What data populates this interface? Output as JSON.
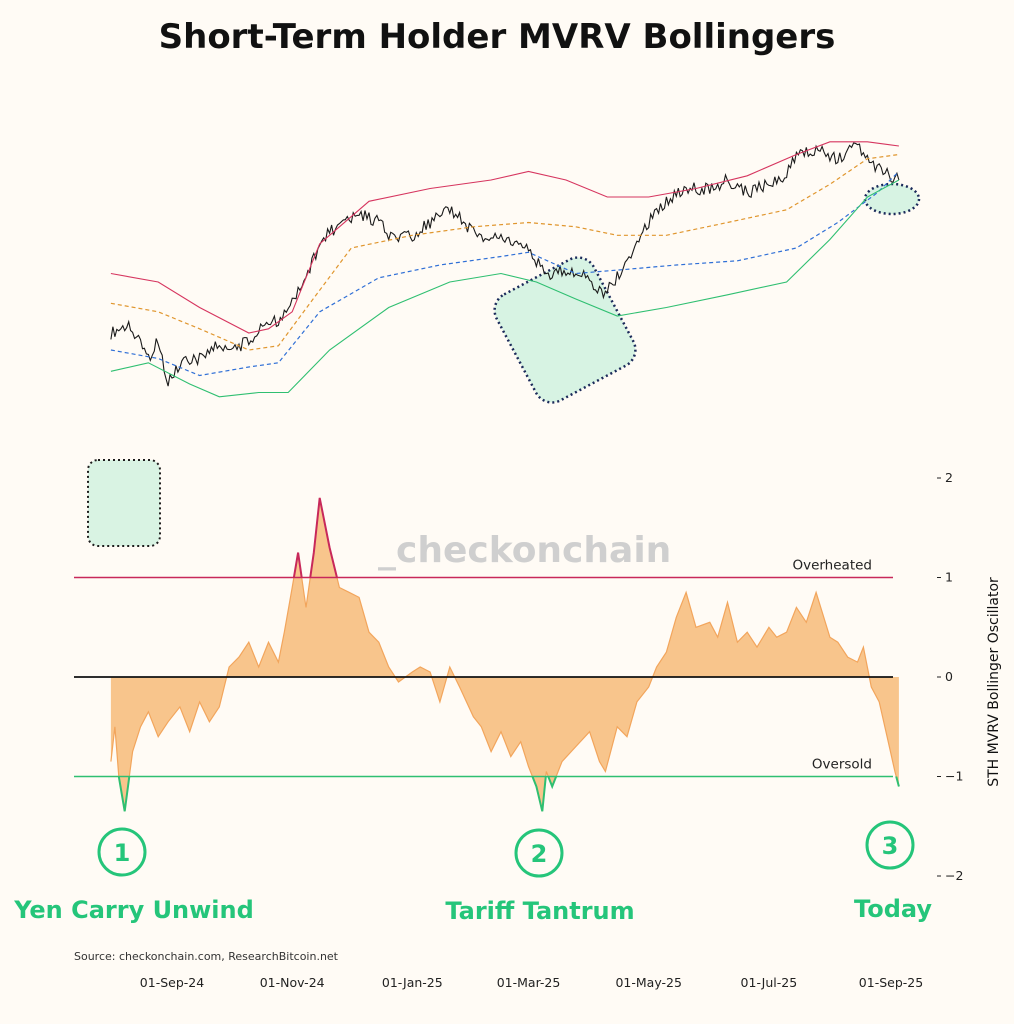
{
  "title": "Short-Term Holder MVRV Bollingers",
  "watermark": "_checkonchain",
  "source": "Source: checkonchain.com, ResearchBitcoin.net",
  "colors": {
    "background": "#fffbf5",
    "price": "#1a1a1a",
    "upper_band": "#d6355f",
    "mid_band": "#e0962e",
    "lower_mid_band": "#2f6fd6",
    "lower_band": "#2fbf71",
    "oscillator_fill": "#f8c58c",
    "oscillator_line": "#f2a55c",
    "overheated_line": "#c8285a",
    "oversold_line": "#2fbf71",
    "zero_line": "#111111",
    "accent_green": "#25c57a",
    "highlight_fill": "#d7f3e3"
  },
  "chart_data": [
    {
      "type": "line",
      "title": "Short-Term Holder MVRV Bollingers",
      "x_axis": {
        "tick_labels": [
          "01-Sep-24",
          "01-Nov-24",
          "01-Jan-25",
          "01-Mar-25",
          "01-May-25",
          "01-Jul-25",
          "01-Sep-25"
        ],
        "range": [
          "2024-08-01",
          "2025-09-10"
        ]
      },
      "y_axis": {
        "scale": "hidden"
      },
      "grid": false,
      "series": [
        {
          "name": "price",
          "x": [
            "2024-08-01",
            "2024-08-10",
            "2024-08-20",
            "2024-08-24",
            "2024-08-30",
            "2024-09-07",
            "2024-09-15",
            "2024-09-22",
            "2024-10-01",
            "2024-10-10",
            "2024-10-18",
            "2024-10-26",
            "2024-11-01",
            "2024-11-07",
            "2024-11-12",
            "2024-11-20",
            "2024-11-29",
            "2024-12-06",
            "2024-12-15",
            "2024-12-22",
            "2025-01-01",
            "2025-01-10",
            "2025-01-20",
            "2025-01-25",
            "2025-02-05",
            "2025-02-15",
            "2025-02-25",
            "2025-03-05",
            "2025-03-11",
            "2025-03-20",
            "2025-03-30",
            "2025-04-08",
            "2025-04-15",
            "2025-04-22",
            "2025-05-01",
            "2025-05-10",
            "2025-05-20",
            "2025-06-01",
            "2025-06-10",
            "2025-06-20",
            "2025-07-01",
            "2025-07-10",
            "2025-07-15",
            "2025-07-25",
            "2025-08-05",
            "2025-08-14",
            "2025-08-20",
            "2025-08-28",
            "2025-09-05"
          ],
          "y": [
            0.44,
            0.46,
            0.38,
            0.42,
            0.33,
            0.37,
            0.38,
            0.41,
            0.4,
            0.42,
            0.46,
            0.47,
            0.51,
            0.56,
            0.62,
            0.68,
            0.7,
            0.72,
            0.7,
            0.66,
            0.67,
            0.7,
            0.73,
            0.71,
            0.66,
            0.67,
            0.65,
            0.61,
            0.58,
            0.59,
            0.57,
            0.53,
            0.57,
            0.63,
            0.7,
            0.75,
            0.78,
            0.78,
            0.8,
            0.77,
            0.79,
            0.81,
            0.86,
            0.87,
            0.85,
            0.88,
            0.85,
            0.82,
            0.8
          ]
        },
        {
          "name": "upper band",
          "x": [
            "2024-08-01",
            "2024-08-25",
            "2024-09-15",
            "2024-10-10",
            "2024-10-20",
            "2024-11-01",
            "2024-11-15",
            "2024-12-10",
            "2025-01-10",
            "2025-02-10",
            "2025-03-01",
            "2025-03-20",
            "2025-04-10",
            "2025-05-01",
            "2025-05-25",
            "2025-06-20",
            "2025-07-15",
            "2025-08-01",
            "2025-08-20",
            "2025-09-05"
          ],
          "y": [
            0.58,
            0.56,
            0.5,
            0.44,
            0.45,
            0.49,
            0.65,
            0.75,
            0.78,
            0.8,
            0.82,
            0.8,
            0.76,
            0.76,
            0.78,
            0.81,
            0.86,
            0.89,
            0.89,
            0.88
          ]
        },
        {
          "name": "middle band",
          "x": [
            "2024-08-01",
            "2024-08-25",
            "2024-09-15",
            "2024-10-10",
            "2024-10-25",
            "2024-11-10",
            "2024-12-01",
            "2025-01-01",
            "2025-02-01",
            "2025-03-01",
            "2025-03-25",
            "2025-04-15",
            "2025-05-10",
            "2025-06-10",
            "2025-07-10",
            "2025-08-01",
            "2025-08-20",
            "2025-09-05"
          ],
          "y": [
            0.51,
            0.49,
            0.45,
            0.4,
            0.41,
            0.51,
            0.64,
            0.67,
            0.69,
            0.7,
            0.69,
            0.67,
            0.67,
            0.7,
            0.73,
            0.79,
            0.85,
            0.86
          ]
        },
        {
          "name": "lower-middle band",
          "x": [
            "2024-08-01",
            "2024-08-25",
            "2024-09-15",
            "2024-10-10",
            "2024-10-25",
            "2024-11-15",
            "2024-12-15",
            "2025-01-15",
            "2025-02-15",
            "2025-03-01",
            "2025-03-25",
            "2025-04-20",
            "2025-05-15",
            "2025-06-15",
            "2025-07-15",
            "2025-08-05",
            "2025-08-25",
            "2025-09-05"
          ],
          "y": [
            0.4,
            0.38,
            0.34,
            0.36,
            0.37,
            0.49,
            0.57,
            0.6,
            0.62,
            0.63,
            0.58,
            0.59,
            0.6,
            0.61,
            0.64,
            0.7,
            0.77,
            0.82
          ]
        },
        {
          "name": "lower band",
          "x": [
            "2024-08-01",
            "2024-08-20",
            "2024-09-10",
            "2024-09-25",
            "2024-10-15",
            "2024-10-30",
            "2024-11-20",
            "2024-12-20",
            "2025-01-20",
            "2025-02-15",
            "2025-03-05",
            "2025-03-25",
            "2025-04-15",
            "2025-05-10",
            "2025-06-10",
            "2025-07-10",
            "2025-08-01",
            "2025-08-20",
            "2025-09-05"
          ],
          "y": [
            0.35,
            0.37,
            0.32,
            0.29,
            0.3,
            0.3,
            0.4,
            0.5,
            0.56,
            0.58,
            0.56,
            0.52,
            0.48,
            0.5,
            0.53,
            0.56,
            0.66,
            0.76,
            0.8
          ]
        }
      ],
      "annotations": [
        {
          "label": "1",
          "text": "Yen Carry Unwind",
          "x": "2024-08-05"
        },
        {
          "label": "2",
          "text": "Tariff Tantrum",
          "x": "2025-03-10"
        },
        {
          "label": "3",
          "text": "Today",
          "x": "2025-09-05"
        }
      ]
    },
    {
      "type": "area",
      "ylabel": "STH MVRV Bollinger Oscillator",
      "x_axis": {
        "range": [
          "2024-08-01",
          "2025-09-10"
        ]
      },
      "y_axis": {
        "tick_labels": [
          "2",
          "1",
          "0",
          "−1",
          "−2"
        ],
        "ylim": [
          -2,
          2
        ]
      },
      "grid": false,
      "reference_lines": [
        {
          "label": "Overheated",
          "y": 1
        },
        {
          "label": "",
          "y": 0
        },
        {
          "label": "Oversold",
          "y": -1
        }
      ],
      "series": [
        {
          "name": "oscillator",
          "x": [
            "2024-08-01",
            "2024-08-03",
            "2024-08-05",
            "2024-08-08",
            "2024-08-12",
            "2024-08-16",
            "2024-08-20",
            "2024-08-25",
            "2024-08-30",
            "2024-09-05",
            "2024-09-10",
            "2024-09-15",
            "2024-09-20",
            "2024-09-25",
            "2024-09-30",
            "2024-10-05",
            "2024-10-10",
            "2024-10-15",
            "2024-10-20",
            "2024-10-25",
            "2024-10-28",
            "2024-11-01",
            "2024-11-04",
            "2024-11-08",
            "2024-11-12",
            "2024-11-15",
            "2024-11-20",
            "2024-11-25",
            "2024-11-30",
            "2024-12-05",
            "2024-12-10",
            "2024-12-15",
            "2024-12-20",
            "2024-12-25",
            "2025-01-01",
            "2025-01-05",
            "2025-01-10",
            "2025-01-15",
            "2025-01-20",
            "2025-01-25",
            "2025-02-01",
            "2025-02-05",
            "2025-02-10",
            "2025-02-15",
            "2025-02-20",
            "2025-02-25",
            "2025-03-01",
            "2025-03-05",
            "2025-03-08",
            "2025-03-10",
            "2025-03-13",
            "2025-03-18",
            "2025-03-25",
            "2025-04-01",
            "2025-04-06",
            "2025-04-09",
            "2025-04-15",
            "2025-04-20",
            "2025-04-25",
            "2025-05-01",
            "2025-05-05",
            "2025-05-10",
            "2025-05-15",
            "2025-05-20",
            "2025-05-25",
            "2025-06-01",
            "2025-06-05",
            "2025-06-10",
            "2025-06-15",
            "2025-06-20",
            "2025-06-25",
            "2025-07-01",
            "2025-07-05",
            "2025-07-10",
            "2025-07-15",
            "2025-07-20",
            "2025-07-25",
            "2025-08-01",
            "2025-08-05",
            "2025-08-10",
            "2025-08-15",
            "2025-08-18",
            "2025-08-22",
            "2025-08-26",
            "2025-08-30",
            "2025-09-03",
            "2025-09-05"
          ],
          "y": [
            -0.85,
            -0.5,
            -1.0,
            -1.35,
            -0.75,
            -0.5,
            -0.35,
            -0.6,
            -0.45,
            -0.3,
            -0.55,
            -0.25,
            -0.45,
            -0.3,
            0.1,
            0.2,
            0.35,
            0.1,
            0.35,
            0.15,
            0.45,
            0.9,
            1.25,
            0.7,
            1.25,
            1.8,
            1.3,
            0.9,
            0.85,
            0.8,
            0.45,
            0.35,
            0.1,
            -0.05,
            0.05,
            0.1,
            0.05,
            -0.25,
            0.1,
            -0.1,
            -0.4,
            -0.5,
            -0.75,
            -0.55,
            -0.8,
            -0.65,
            -0.9,
            -1.1,
            -1.35,
            -0.95,
            -1.1,
            -0.85,
            -0.7,
            -0.55,
            -0.85,
            -0.95,
            -0.5,
            -0.6,
            -0.25,
            -0.1,
            0.1,
            0.25,
            0.6,
            0.85,
            0.5,
            0.55,
            0.4,
            0.75,
            0.35,
            0.45,
            0.3,
            0.5,
            0.4,
            0.45,
            0.7,
            0.55,
            0.85,
            0.4,
            0.35,
            0.2,
            0.15,
            0.3,
            -0.1,
            -0.25,
            -0.6,
            -0.95,
            -1.1
          ]
        }
      ]
    }
  ]
}
